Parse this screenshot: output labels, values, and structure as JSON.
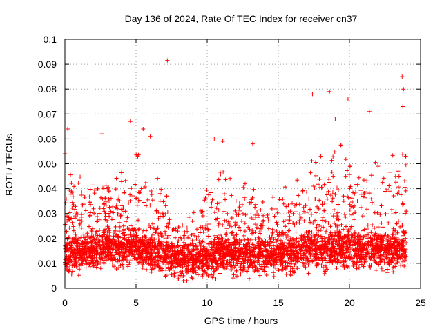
{
  "chart_data": {
    "type": "scatter",
    "title": "Day 136 of 2024, Rate Of TEC Index for receiver cn37",
    "xlabel": "GPS time / hours",
    "ylabel": "ROTI / TECUs",
    "xlim": [
      0,
      25
    ],
    "ylim": [
      0,
      0.1
    ],
    "x_ticks": [
      0,
      5,
      10,
      15,
      20,
      25
    ],
    "x_tick_labels": [
      "0",
      "5",
      "10",
      "15",
      "20",
      "25"
    ],
    "y_ticks": [
      0,
      0.01,
      0.02,
      0.03,
      0.04,
      0.05,
      0.06,
      0.07,
      0.08,
      0.09,
      0.1
    ],
    "y_tick_labels": [
      "0",
      "0.01",
      "0.02",
      "0.03",
      "0.04",
      "0.05",
      "0.06",
      "0.07",
      "0.08",
      "0.09",
      "0.1"
    ],
    "grid": true,
    "marker": "+",
    "color": "#ff0000",
    "notable_points": [
      {
        "x": 0.2,
        "y": 0.064
      },
      {
        "x": 0.0,
        "y": 0.054
      },
      {
        "x": 2.6,
        "y": 0.062
      },
      {
        "x": 4.6,
        "y": 0.067
      },
      {
        "x": 5.5,
        "y": 0.064
      },
      {
        "x": 6.0,
        "y": 0.061
      },
      {
        "x": 7.2,
        "y": 0.0915
      },
      {
        "x": 10.5,
        "y": 0.06
      },
      {
        "x": 11.1,
        "y": 0.059
      },
      {
        "x": 13.2,
        "y": 0.058
      },
      {
        "x": 17.4,
        "y": 0.078
      },
      {
        "x": 18.6,
        "y": 0.079
      },
      {
        "x": 19.0,
        "y": 0.068
      },
      {
        "x": 19.9,
        "y": 0.076
      },
      {
        "x": 21.4,
        "y": 0.071
      },
      {
        "x": 23.7,
        "y": 0.085
      },
      {
        "x": 23.8,
        "y": 0.08
      },
      {
        "x": 23.75,
        "y": 0.073
      }
    ],
    "profile": {
      "hours": [
        0,
        1,
        2,
        3,
        4,
        5,
        6,
        7,
        8,
        9,
        10,
        11,
        12,
        13,
        14,
        15,
        16,
        17,
        18,
        19,
        20,
        21,
        22,
        23,
        24
      ],
      "typical_roti": [
        0.014,
        0.014,
        0.015,
        0.016,
        0.016,
        0.016,
        0.015,
        0.013,
        0.011,
        0.011,
        0.012,
        0.014,
        0.013,
        0.013,
        0.013,
        0.013,
        0.014,
        0.015,
        0.015,
        0.016,
        0.016,
        0.015,
        0.015,
        0.015,
        0.015
      ],
      "upper_envelope": [
        0.05,
        0.045,
        0.048,
        0.05,
        0.052,
        0.055,
        0.048,
        0.042,
        0.025,
        0.032,
        0.042,
        0.05,
        0.045,
        0.045,
        0.035,
        0.04,
        0.042,
        0.05,
        0.055,
        0.058,
        0.058,
        0.055,
        0.05,
        0.06,
        0.055
      ]
    }
  }
}
